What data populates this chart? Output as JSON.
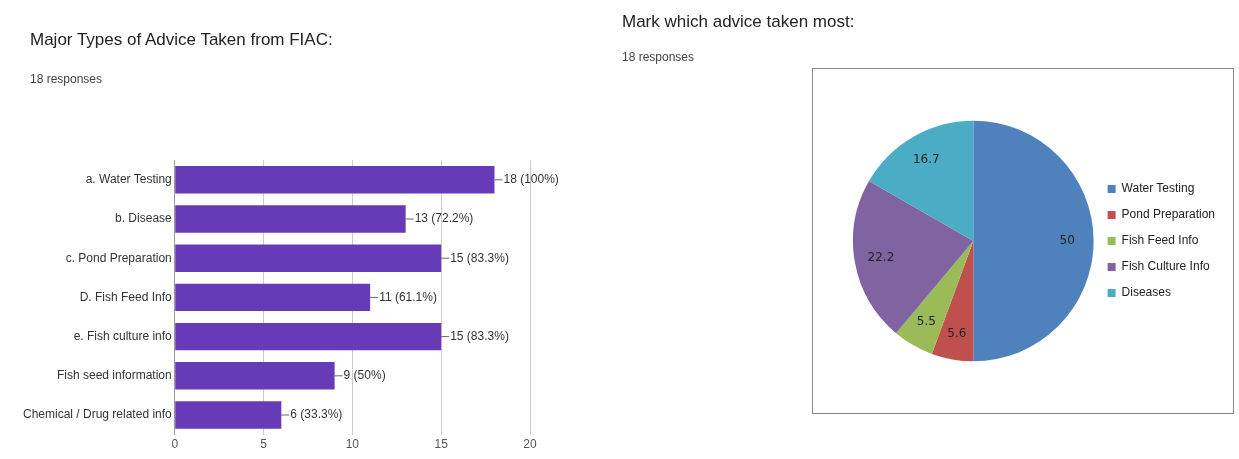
{
  "chart_data": [
    {
      "type": "bar",
      "orientation": "horizontal",
      "title": "Major Types of Advice Taken from FIAC:",
      "subtitle": "18 responses",
      "categories": [
        "a. Water Testing",
        "b. Disease",
        "c. Pond Preparation",
        "D. Fish Feed Info",
        "e. Fish culture info",
        "Fish seed information",
        "Chemical / Drug related info"
      ],
      "values": [
        18,
        13,
        15,
        11,
        15,
        9,
        6
      ],
      "value_labels": [
        "18 (100%)",
        "13 (72.2%)",
        "15 (83.3%)",
        "11 (61.1%)",
        "15 (83.3%)",
        "9 (50%)",
        "6 (33.3%)"
      ],
      "color": "#673ab7",
      "xlim": [
        0,
        20
      ],
      "xticks": [
        0,
        5,
        10,
        15,
        20
      ],
      "grid": "x"
    },
    {
      "type": "pie",
      "title": "Mark which advice taken most:",
      "subtitle": "18 responses",
      "categories": [
        "Water Testing",
        "Pond Preparation",
        "Fish Feed Info",
        "Fish Culture Info",
        "Diseases"
      ],
      "values": [
        50,
        5.6,
        5.5,
        22.2,
        16.7
      ],
      "colors": [
        "#4f81bd",
        "#c0504d",
        "#9bbb59",
        "#8064a2",
        "#4bacc6"
      ],
      "data_labels": true,
      "legend": "right"
    }
  ]
}
